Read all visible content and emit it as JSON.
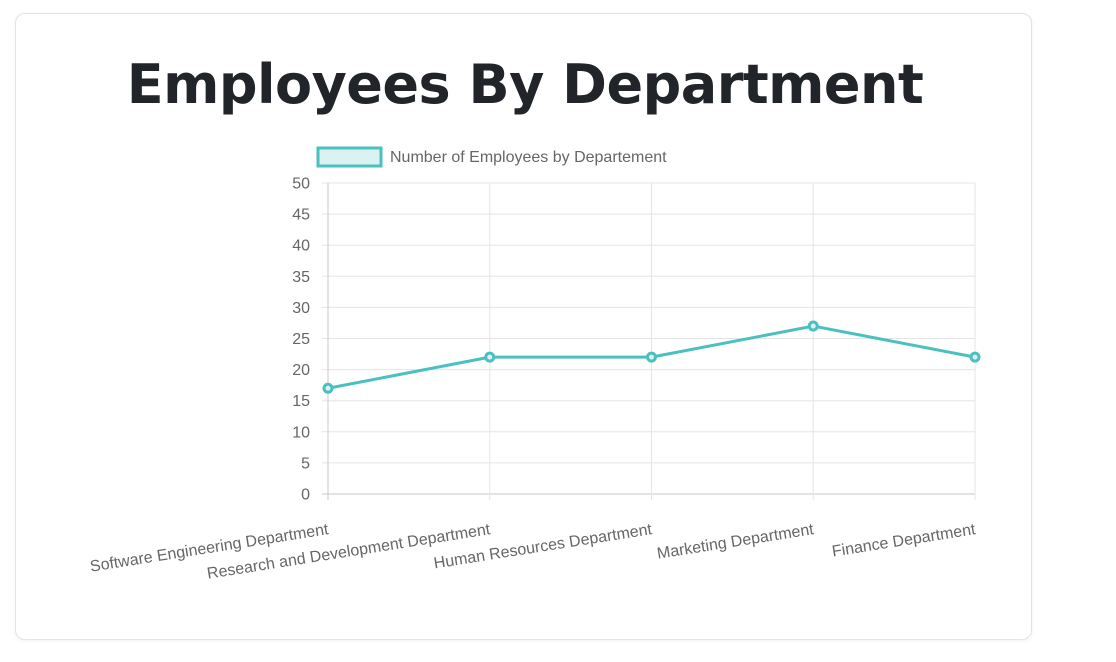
{
  "page": {
    "title": "Employees By Department"
  },
  "colors": {
    "line": "#4bc0c0",
    "legend_fill": "#dbf2f2",
    "grid": "#e5e5e5",
    "axis": "#c8c8c8",
    "tick_text": "#666666"
  },
  "chart_data": {
    "type": "line",
    "title": "",
    "xlabel": "",
    "ylabel": "",
    "categories": [
      "Software Engineering Department",
      "Research and Development Department",
      "Human Resources Department",
      "Marketing Department",
      "Finance Department"
    ],
    "series": [
      {
        "name": "Number of Employees by Departement",
        "values": [
          17,
          22,
          22,
          27,
          22
        ]
      }
    ],
    "ylim": [
      0,
      50
    ],
    "yticks": [
      "0",
      "5",
      "10",
      "15",
      "20",
      "25",
      "30",
      "35",
      "40",
      "45",
      "50"
    ],
    "grid": true,
    "legend": "top"
  }
}
